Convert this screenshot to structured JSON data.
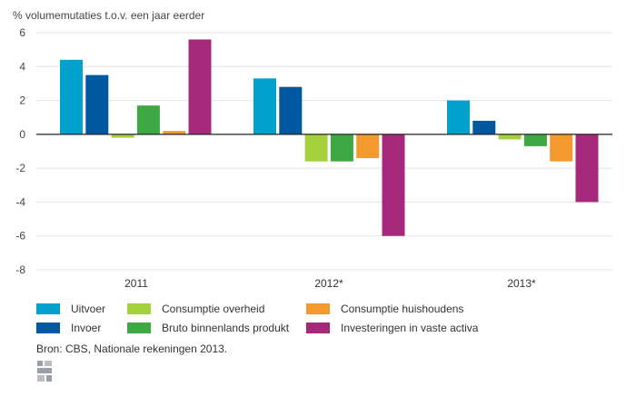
{
  "header": {
    "ylabel": "% volumemutaties t.o.v. een jaar eerder"
  },
  "source": "Bron: CBS, Nationale rekeningen 2013.",
  "logo": {
    "icon": "cbs-logo-icon"
  },
  "chart_data": {
    "type": "bar",
    "title": "",
    "ylabel": "% volumemutaties t.o.v. een jaar eerder",
    "xlabel": "",
    "ylim": [
      -8,
      6
    ],
    "yticks": [
      6,
      4,
      2,
      0,
      -2,
      -4,
      -6,
      -8
    ],
    "grid": true,
    "legend_position": "bottom",
    "categories": [
      "2011",
      "2012*",
      "2013*"
    ],
    "series": [
      {
        "name": "Uitvoer",
        "color": "#00a1cd",
        "values": [
          4.4,
          3.3,
          2.0
        ]
      },
      {
        "name": "Invoer",
        "color": "#0058a0",
        "values": [
          3.5,
          2.8,
          0.8
        ]
      },
      {
        "name": "Consumptie overheid",
        "color": "#a5d13e",
        "values": [
          -0.2,
          -1.6,
          -0.3
        ]
      },
      {
        "name": "Bruto binnenlands produkt",
        "color": "#3ea842",
        "values": [
          1.7,
          -1.6,
          -0.7
        ]
      },
      {
        "name": "Consumptie huishoudens",
        "color": "#f39a2e",
        "values": [
          0.2,
          -1.4,
          -1.6
        ]
      },
      {
        "name": "Investeringen in vaste activa",
        "color": "#a5287a",
        "values": [
          5.6,
          -6.0,
          -4.0
        ]
      }
    ]
  }
}
